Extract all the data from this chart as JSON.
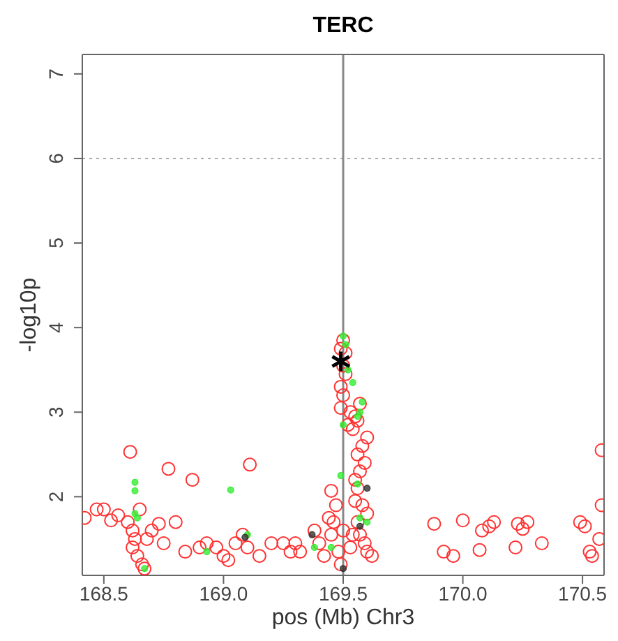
{
  "chart_data": {
    "type": "scatter",
    "title": "TERC",
    "xlabel": "pos (Mb) Chr3",
    "ylabel": "-log10p",
    "xlim": [
      168.41,
      170.59
    ],
    "ylim": [
      1.07,
      7.23
    ],
    "xticks": [
      168.5,
      {
        "value": 169,
        "label": "169.0"
      },
      169.5,
      {
        "value": 170,
        "label": "170.0"
      },
      170.5
    ],
    "yticks": [
      2,
      3,
      4,
      5,
      6,
      7
    ],
    "ref_lines": [
      {
        "axis": "y",
        "value": 6,
        "color": "#aaaaaa",
        "line_style": "dotted"
      },
      {
        "axis": "x",
        "value": 169.5,
        "color": "#888888",
        "line_style": "solid"
      }
    ],
    "series": [
      {
        "color": "#ff3333",
        "marker": "circle",
        "x": [
          168.42,
          168.47,
          168.5,
          168.53,
          168.56,
          168.6,
          168.62,
          168.63,
          168.62,
          168.64,
          168.66,
          168.68,
          168.7,
          168.65,
          168.61,
          168.67,
          168.73,
          168.75,
          168.77,
          168.8,
          168.84,
          168.87,
          168.9,
          168.93,
          168.97,
          169.0,
          169.02,
          169.05,
          169.08,
          169.1,
          169.11,
          169.15,
          169.2,
          169.25,
          169.28,
          169.3,
          169.32,
          169.38,
          169.4,
          169.42,
          169.45,
          169.45,
          169.46,
          169.48,
          169.47,
          169.44,
          169.49,
          169.5,
          169.49,
          169.51,
          169.5,
          169.51,
          169.49,
          169.5,
          169.49,
          169.53,
          169.55,
          169.57,
          169.56,
          169.54,
          169.58,
          169.56,
          169.59,
          169.57,
          169.56,
          169.55,
          169.58,
          169.6,
          169.56,
          169.57,
          169.59,
          169.6,
          169.62,
          169.53,
          169.54,
          169.5,
          169.55,
          169.6,
          169.52,
          169.88,
          169.92,
          169.96,
          170.0,
          170.07,
          170.08,
          170.11,
          170.13,
          170.22,
          170.23,
          170.25,
          170.27,
          170.33,
          170.49,
          170.51,
          170.53,
          170.54,
          170.57,
          170.58,
          170.58
        ],
        "values": [
          1.75,
          1.85,
          1.85,
          1.72,
          1.78,
          1.7,
          1.6,
          1.5,
          1.4,
          1.3,
          1.2,
          1.5,
          1.6,
          1.85,
          2.53,
          1.15,
          1.68,
          1.45,
          2.33,
          1.7,
          1.35,
          2.2,
          1.4,
          1.45,
          1.4,
          1.3,
          1.25,
          1.45,
          1.55,
          1.4,
          2.38,
          1.3,
          1.45,
          1.45,
          1.35,
          1.45,
          1.35,
          1.6,
          1.45,
          1.3,
          1.55,
          2.07,
          1.7,
          1.35,
          1.9,
          1.75,
          1.2,
          3.85,
          3.75,
          3.7,
          3.55,
          3.45,
          3.3,
          3.2,
          3.05,
          3.0,
          2.95,
          3.1,
          2.9,
          2.8,
          2.6,
          2.5,
          2.4,
          2.3,
          2.1,
          1.95,
          1.9,
          1.8,
          1.7,
          1.55,
          1.45,
          1.35,
          1.3,
          1.4,
          1.55,
          1.6,
          2.2,
          2.7,
          2.85,
          1.68,
          1.35,
          1.3,
          1.72,
          1.37,
          1.6,
          1.65,
          1.7,
          1.4,
          1.68,
          1.62,
          1.7,
          1.45,
          1.7,
          1.65,
          1.35,
          1.3,
          1.5,
          1.9,
          2.55
        ]
      },
      {
        "color": "#33ee33",
        "marker": "circle",
        "x": [
          168.63,
          168.63,
          168.63,
          168.64,
          168.67,
          168.93,
          169.03,
          169.1,
          169.38,
          169.49,
          169.5,
          169.51,
          169.52,
          169.54,
          169.5,
          169.57,
          169.58,
          169.56,
          169.56,
          169.57,
          169.6,
          169.45
        ],
        "values": [
          2.07,
          2.17,
          1.8,
          1.75,
          1.15,
          1.35,
          2.08,
          1.55,
          1.4,
          2.25,
          3.9,
          3.8,
          3.5,
          3.35,
          2.85,
          3.0,
          3.12,
          2.95,
          2.15,
          1.75,
          1.7,
          1.4
        ]
      },
      {
        "color": "#333333",
        "marker": "circle",
        "x": [
          169.09,
          169.37,
          169.5,
          169.57,
          169.6
        ],
        "values": [
          1.52,
          1.55,
          1.15,
          1.65,
          2.1
        ]
      },
      {
        "color": "#000000",
        "marker": "cross",
        "x": [
          169.49
        ],
        "values": [
          3.6
        ]
      }
    ]
  }
}
